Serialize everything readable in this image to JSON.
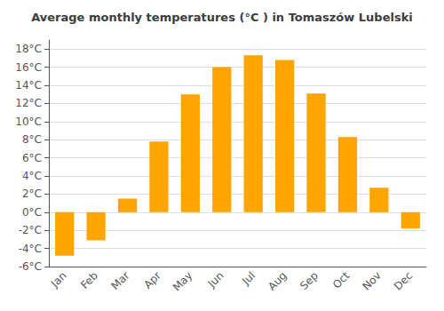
{
  "chart_data": {
    "type": "bar",
    "title": "Average monthly temperatures (°C ) in Tomaszów Lubelski",
    "categories": [
      "Jan",
      "Feb",
      "Mar",
      "Apr",
      "May",
      "Jun",
      "Jul",
      "Aug",
      "Sep",
      "Oct",
      "Nov",
      "Dec"
    ],
    "values": [
      -4.8,
      -3.1,
      1.5,
      7.8,
      13.0,
      16.0,
      17.3,
      16.8,
      13.1,
      8.3,
      2.7,
      -1.8
    ],
    "color": "#FFA500",
    "ylim": [
      -6,
      19
    ],
    "yticks": [
      {
        "value": -6,
        "label": "-6°C"
      },
      {
        "value": -4,
        "label": "-4°C"
      },
      {
        "value": -2,
        "label": "-2°C"
      },
      {
        "value": 0,
        "label": "0°C"
      },
      {
        "value": 2,
        "label": "2°C"
      },
      {
        "value": 4,
        "label": "4°C"
      },
      {
        "value": 6,
        "label": "6°C"
      },
      {
        "value": 8,
        "label": "8°C"
      },
      {
        "value": 10,
        "label": "10°C"
      },
      {
        "value": 12,
        "label": "12°C"
      },
      {
        "value": 14,
        "label": "14°C"
      },
      {
        "value": 16,
        "label": "16°C"
      },
      {
        "value": 18,
        "label": "18°C"
      }
    ],
    "grid": true
  }
}
